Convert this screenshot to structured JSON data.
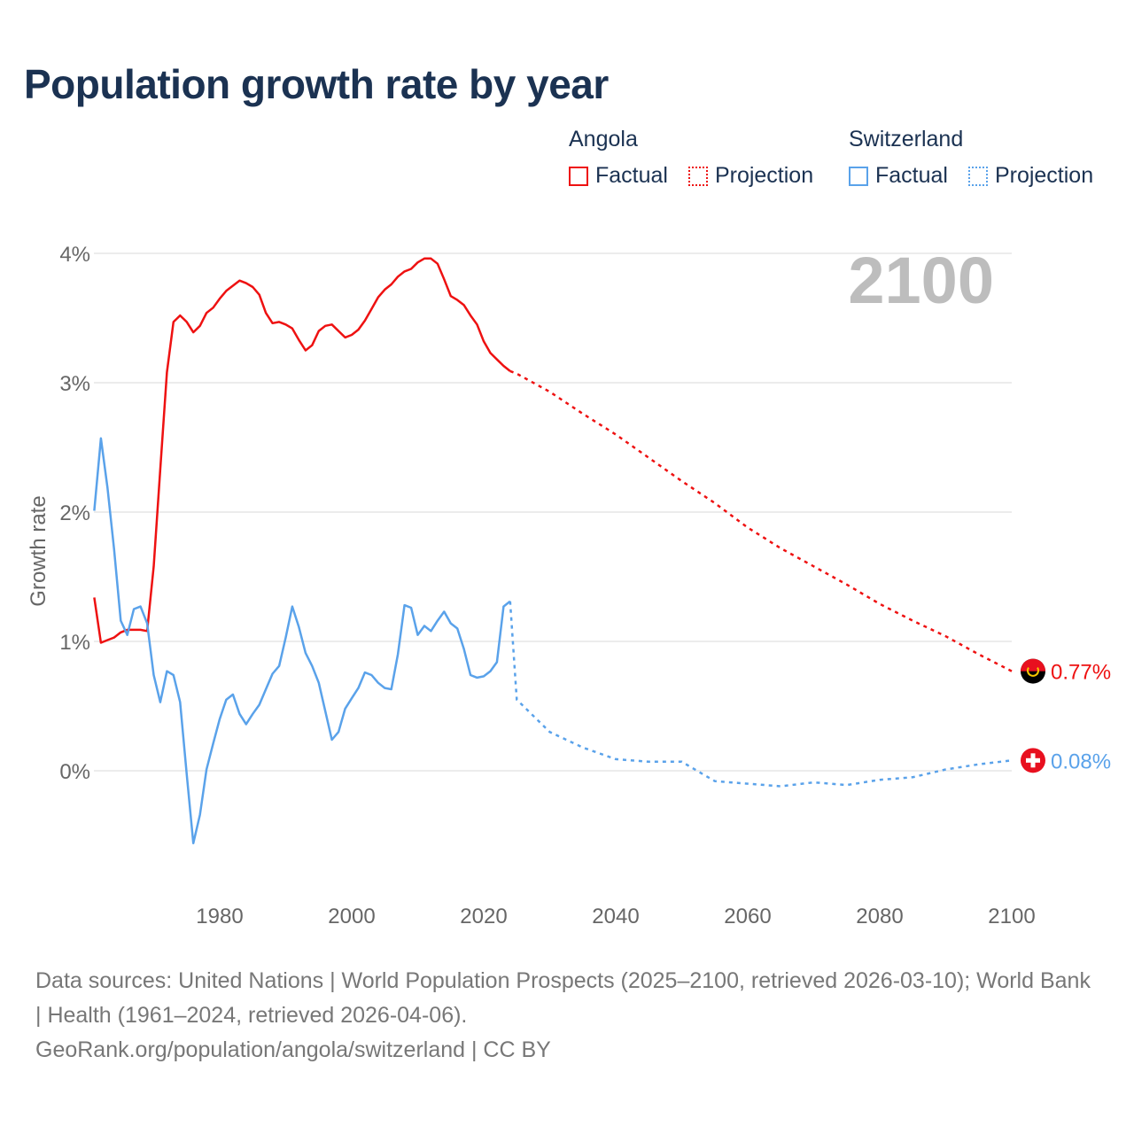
{
  "chart_data": {
    "type": "line",
    "title": "Population growth rate by year",
    "ylabel": "Growth rate",
    "xlabel": "",
    "xlim": [
      1961,
      2100
    ],
    "ylim": [
      -0.9,
      4.2
    ],
    "x_ticks": [
      1980,
      2000,
      2020,
      2040,
      2060,
      2080,
      2100
    ],
    "x_tick_labels": [
      "1980",
      "2000",
      "2020",
      "2040",
      "2060",
      "2080",
      "2100"
    ],
    "y_ticks": [
      0,
      1,
      2,
      3,
      4
    ],
    "y_tick_labels": [
      "0%",
      "1%",
      "2%",
      "3%",
      "4%"
    ],
    "grid": true,
    "year_watermark": "2100",
    "legend": {
      "placement": "top-right",
      "groups": [
        {
          "name": "Angola",
          "items": [
            "Factual",
            "Projection"
          ],
          "color": "#ee1111"
        },
        {
          "name": "Switzerland",
          "items": [
            "Factual",
            "Projection"
          ],
          "color": "#5aa2ea"
        }
      ]
    },
    "series": [
      {
        "name": "Angola",
        "color": "#ee1111",
        "end_label": "0.77%",
        "factual": {
          "x": [
            1961,
            1962,
            1963,
            1964,
            1965,
            1966,
            1967,
            1968,
            1969,
            1970,
            1971,
            1972,
            1973,
            1974,
            1975,
            1976,
            1977,
            1978,
            1979,
            1980,
            1981,
            1982,
            1983,
            1984,
            1985,
            1986,
            1987,
            1988,
            1989,
            1990,
            1991,
            1992,
            1993,
            1994,
            1995,
            1996,
            1997,
            1998,
            1999,
            2000,
            2001,
            2002,
            2003,
            2004,
            2005,
            2006,
            2007,
            2008,
            2009,
            2010,
            2011,
            2012,
            2013,
            2014,
            2015,
            2016,
            2017,
            2018,
            2019,
            2020,
            2021,
            2022,
            2023,
            2024
          ],
          "y": [
            1.34,
            0.99,
            1.01,
            1.03,
            1.07,
            1.09,
            1.09,
            1.09,
            1.08,
            1.58,
            2.33,
            3.08,
            3.47,
            3.52,
            3.47,
            3.39,
            3.44,
            3.54,
            3.58,
            3.65,
            3.71,
            3.75,
            3.79,
            3.77,
            3.74,
            3.68,
            3.54,
            3.46,
            3.47,
            3.45,
            3.42,
            3.33,
            3.25,
            3.29,
            3.4,
            3.44,
            3.45,
            3.4,
            3.35,
            3.37,
            3.41,
            3.48,
            3.57,
            3.66,
            3.72,
            3.76,
            3.82,
            3.86,
            3.88,
            3.93,
            3.96,
            3.96,
            3.92,
            3.8,
            3.67,
            3.64,
            3.6,
            3.52,
            3.45,
            3.32,
            3.23,
            3.18,
            3.13,
            3.09
          ]
        },
        "projection": {
          "x": [
            2024,
            2025,
            2030,
            2035,
            2040,
            2045,
            2050,
            2055,
            2060,
            2065,
            2070,
            2075,
            2080,
            2085,
            2090,
            2095,
            2100
          ],
          "y": [
            3.09,
            3.07,
            2.93,
            2.76,
            2.6,
            2.42,
            2.24,
            2.07,
            1.88,
            1.72,
            1.58,
            1.44,
            1.29,
            1.16,
            1.04,
            0.9,
            0.77
          ]
        }
      },
      {
        "name": "Switzerland",
        "color": "#5aa2ea",
        "end_label": "0.08%",
        "factual": {
          "x": [
            1961,
            1962,
            1963,
            1964,
            1965,
            1966,
            1967,
            1968,
            1969,
            1970,
            1971,
            1972,
            1973,
            1974,
            1975,
            1976,
            1977,
            1978,
            1979,
            1980,
            1981,
            1982,
            1983,
            1984,
            1985,
            1986,
            1987,
            1988,
            1989,
            1990,
            1991,
            1992,
            1993,
            1994,
            1995,
            1996,
            1997,
            1998,
            1999,
            2000,
            2001,
            2002,
            2003,
            2004,
            2005,
            2006,
            2007,
            2008,
            2009,
            2010,
            2011,
            2012,
            2013,
            2014,
            2015,
            2016,
            2017,
            2018,
            2019,
            2020,
            2021,
            2022,
            2023,
            2024
          ],
          "y": [
            2.01,
            2.57,
            2.19,
            1.71,
            1.16,
            1.05,
            1.25,
            1.27,
            1.14,
            0.74,
            0.53,
            0.77,
            0.74,
            0.53,
            -0.03,
            -0.56,
            -0.34,
            0.01,
            0.21,
            0.4,
            0.55,
            0.59,
            0.44,
            0.36,
            0.44,
            0.51,
            0.63,
            0.75,
            0.81,
            1.03,
            1.27,
            1.11,
            0.91,
            0.81,
            0.68,
            0.46,
            0.24,
            0.3,
            0.48,
            0.56,
            0.64,
            0.76,
            0.74,
            0.68,
            0.64,
            0.63,
            0.9,
            1.28,
            1.26,
            1.05,
            1.12,
            1.08,
            1.16,
            1.23,
            1.14,
            1.1,
            0.94,
            0.74,
            0.72,
            0.73,
            0.77,
            0.84,
            1.27,
            1.31
          ]
        },
        "projection": {
          "x": [
            2024,
            2025,
            2030,
            2035,
            2040,
            2045,
            2050,
            2055,
            2060,
            2065,
            2070,
            2075,
            2080,
            2085,
            2090,
            2095,
            2100
          ],
          "y": [
            1.31,
            0.55,
            0.3,
            0.18,
            0.09,
            0.07,
            0.07,
            -0.08,
            -0.1,
            -0.12,
            -0.09,
            -0.11,
            -0.07,
            -0.05,
            0.01,
            0.05,
            0.08
          ]
        }
      }
    ]
  },
  "footer": {
    "sources": "Data sources: United Nations | World Population Prospects (2025–2100, retrieved 2026-03-10); World Bank | Health (1961–2024, retrieved 2026-04-06).",
    "link": "GeoRank.org/population/angola/switzerland | CC BY"
  }
}
